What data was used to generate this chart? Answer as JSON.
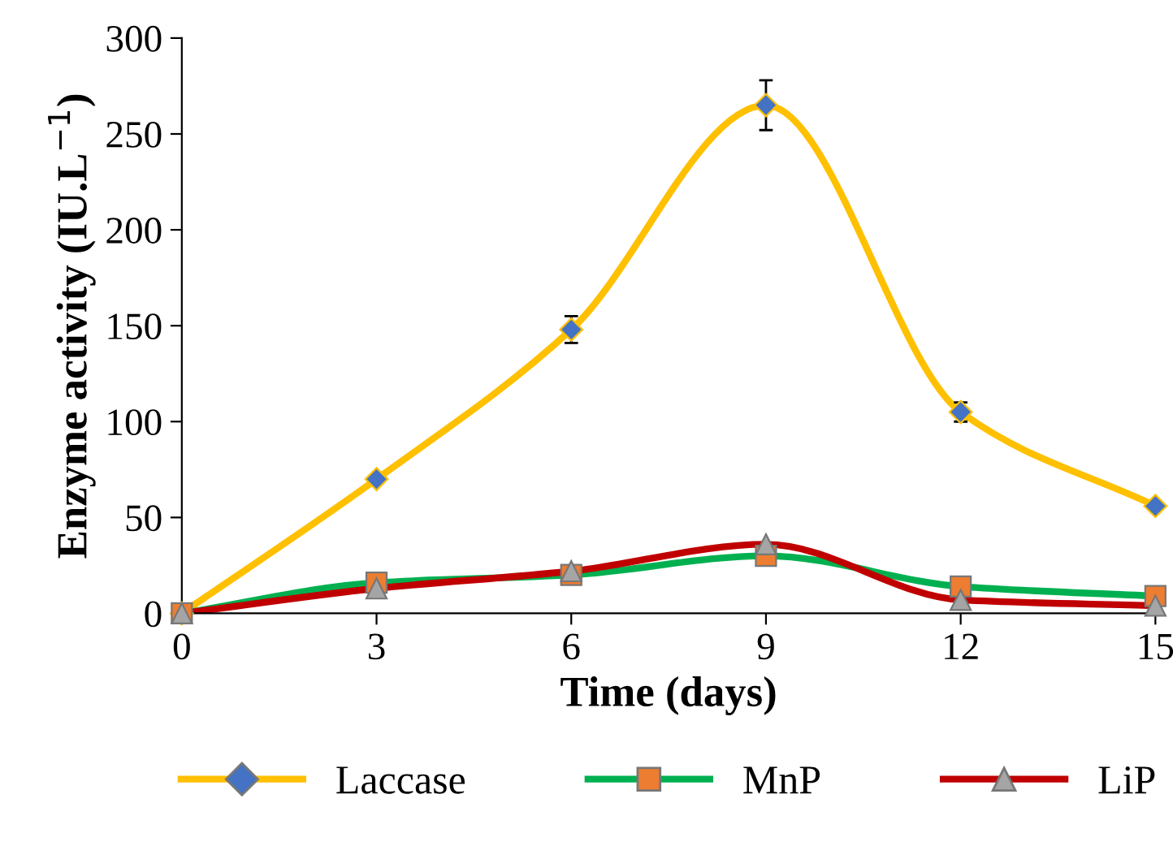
{
  "chart_data": {
    "type": "line",
    "xlabel": "Time (days)",
    "ylabel": "Enzyme activity (IU.L$^{−1}$)",
    "x": [
      0,
      3,
      6,
      9,
      12,
      15
    ],
    "xlim": [
      0,
      15
    ],
    "xticks": [
      0,
      3,
      6,
      9,
      12,
      15
    ],
    "ylim": [
      0,
      300
    ],
    "yticks": [
      0,
      50,
      100,
      150,
      200,
      250,
      300
    ],
    "grid": false,
    "legend": "bottom",
    "series": [
      {
        "name": "Laccase",
        "color": "#ffc000",
        "marker": "diamond",
        "colors": [
          "#4472c4",
          "#4472c4",
          "#4472c4",
          "#4472c4",
          "#4472c4",
          "#4472c4"
        ],
        "values": [
          0,
          70,
          148,
          265,
          105,
          56
        ],
        "errors": [
          null,
          null,
          7,
          13,
          5,
          null
        ]
      },
      {
        "name": "MnP",
        "color": "#00b050",
        "marker": "square",
        "colors": [
          "#ed7d31",
          "#ed7d31",
          "#ed7d31",
          "#ed7d31",
          "#ed7d31",
          "#ed7d31"
        ],
        "values": [
          0,
          16,
          20,
          30,
          14,
          9
        ]
      },
      {
        "name": "LiP",
        "color": "#c00000",
        "marker": "triangle",
        "colors": [
          "#a5a5a5",
          "#a5a5a5",
          "#a5a5a5",
          "#a5a5a5",
          "#a5a5a5",
          "#a5a5a5"
        ],
        "values": [
          0,
          13,
          22,
          36,
          7,
          4
        ]
      }
    ]
  }
}
